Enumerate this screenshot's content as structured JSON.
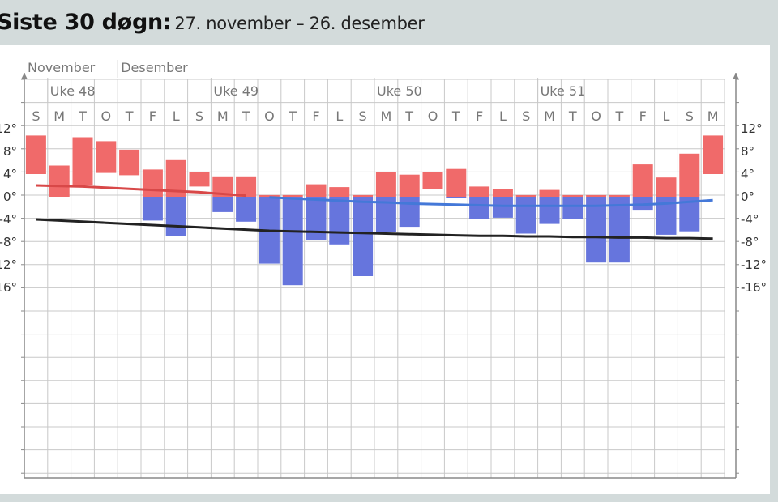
{
  "header": {
    "title": "Siste 30 døgn:",
    "subtitle": "27. november – 26. desember"
  },
  "chart_data": {
    "type": "bar",
    "months": [
      "November",
      "Desember"
    ],
    "weeks": [
      {
        "label": "Uke 48",
        "start_index": 1
      },
      {
        "label": "Uke 49",
        "start_index": 8
      },
      {
        "label": "Uke 50",
        "start_index": 15
      },
      {
        "label": "Uke 51",
        "start_index": 22
      }
    ],
    "day_letters": [
      "S",
      "M",
      "T",
      "O",
      "T",
      "F",
      "L",
      "S",
      "M",
      "T",
      "O",
      "T",
      "F",
      "L",
      "S",
      "M",
      "T",
      "O",
      "T",
      "F",
      "L",
      "S",
      "M",
      "T",
      "O",
      "T",
      "F",
      "L",
      "S",
      "M"
    ],
    "series": [
      {
        "name": "max",
        "values": [
          10.8,
          5.5,
          10.5,
          9.8,
          8.3,
          4.8,
          6.6,
          4.3,
          3.6,
          3.6,
          0.3,
          0.3,
          2.2,
          1.7,
          0.3,
          4.4,
          3.9,
          4.4,
          4.9,
          1.8,
          1.3,
          0.3,
          1.2,
          0.3,
          0.3,
          0.3,
          5.7,
          3.4,
          7.6,
          10.8
        ]
      },
      {
        "name": "min",
        "values": [
          4.0,
          0.0,
          2.0,
          4.2,
          3.8,
          -4.2,
          -6.9,
          1.8,
          -2.7,
          -4.4,
          -11.8,
          -15.6,
          -7.7,
          -8.4,
          -14.0,
          -6.2,
          -5.3,
          1.4,
          -0.1,
          -3.9,
          -3.7,
          -6.5,
          -4.8,
          -4.0,
          -11.6,
          -11.6,
          -2.3,
          -6.7,
          -6.1,
          4.0
        ]
      }
    ],
    "normal_line": [
      -4.0,
      -4.2,
      -4.4,
      -4.6,
      -4.8,
      -5.0,
      -5.2,
      -5.4,
      -5.6,
      -5.8,
      -6.0,
      -6.1,
      -6.2,
      -6.3,
      -6.4,
      -6.5,
      -6.6,
      -6.7,
      -6.8,
      -6.9,
      -6.9,
      -7.0,
      -7.0,
      -7.1,
      -7.1,
      -7.2,
      -7.2,
      -7.3,
      -7.3,
      -7.4
    ],
    "mean_line": [
      2.0,
      1.9,
      1.8,
      1.6,
      1.4,
      1.2,
      1.0,
      0.8,
      0.5,
      0.2,
      -0.1,
      -0.3,
      -0.5,
      -0.7,
      -0.9,
      -1.0,
      -1.2,
      -1.3,
      -1.4,
      -1.5,
      -1.6,
      -1.6,
      -1.6,
      -1.6,
      -1.6,
      -1.5,
      -1.4,
      -1.2,
      -0.9,
      -0.6
    ],
    "y_ticks": [
      "12°",
      "8°",
      "4°",
      "0°",
      "-4°",
      "-8°",
      "-12°",
      "-16°"
    ],
    "ylim": [
      -16,
      12
    ],
    "colors": {
      "warm": "#f06a6a",
      "cold": "#6675dd",
      "normal": "#222222",
      "mean_warm": "#d84848",
      "mean_cold": "#4478d8",
      "grid": "#c8c8c8",
      "axis": "#888888"
    }
  }
}
